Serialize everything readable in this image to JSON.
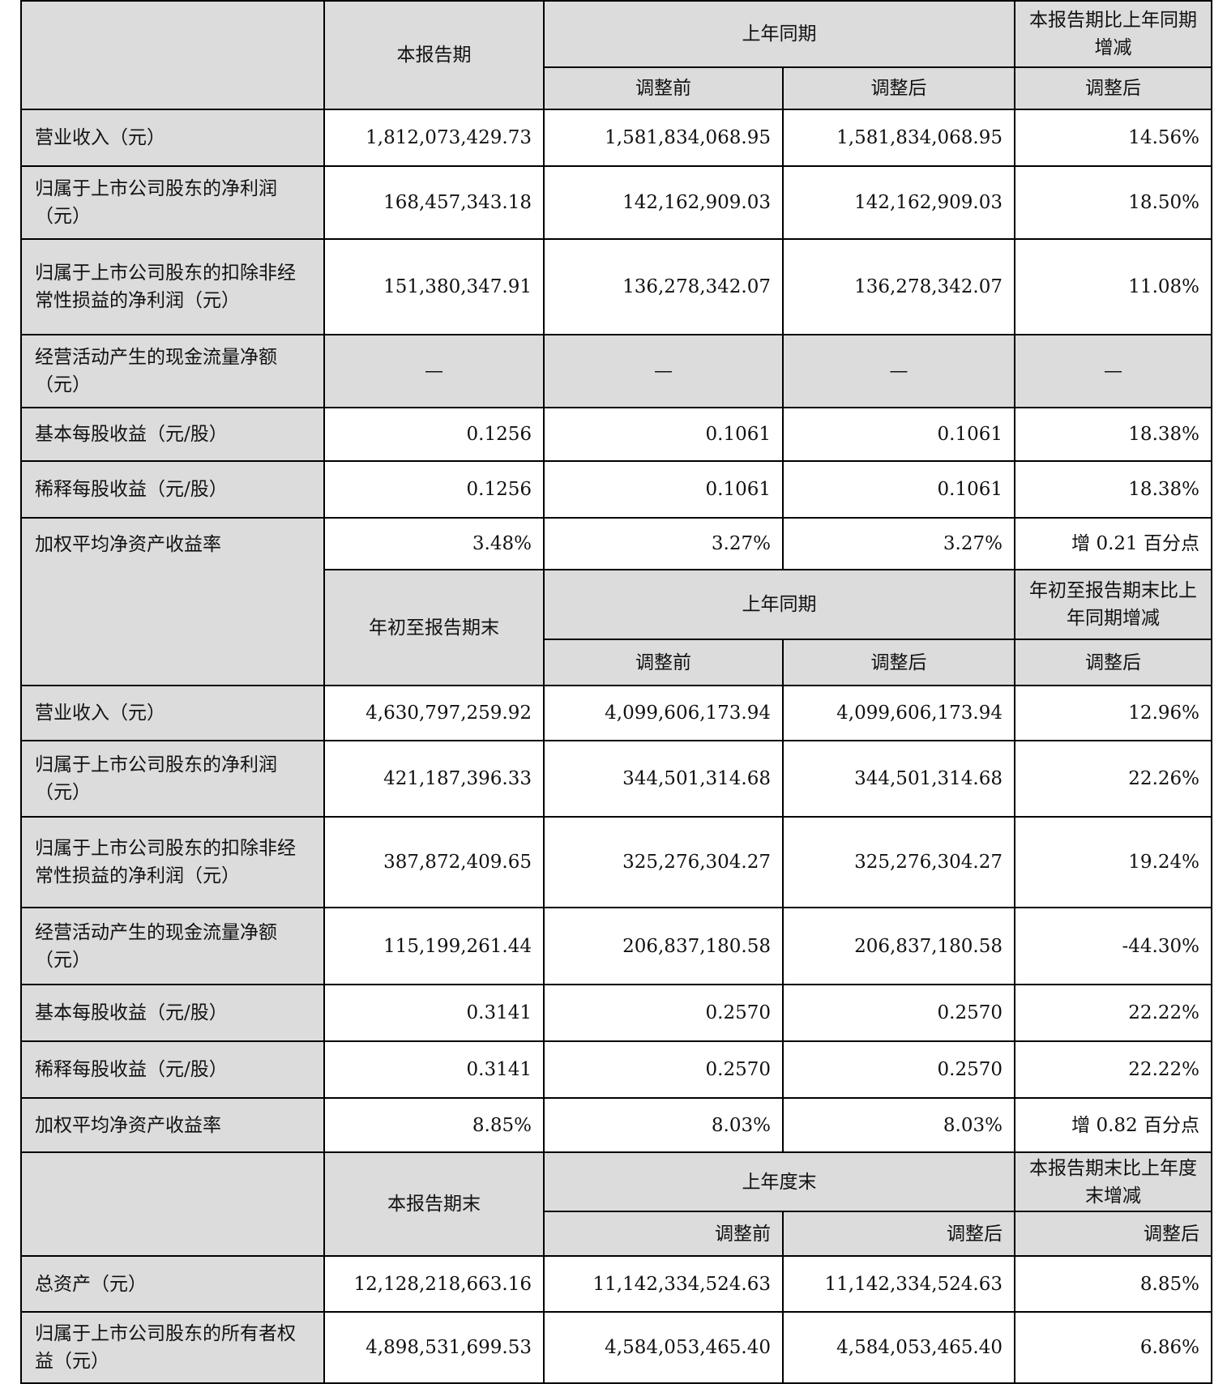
{
  "section1": {
    "header": {
      "current": "本报告期",
      "prior": "上年同期",
      "change": "本报告期比上年同期增减",
      "before": "调整前",
      "after": "调整后",
      "change_after": "调整后"
    },
    "rows": [
      {
        "label": "营业收入（元）",
        "current": "1,812,073,429.73",
        "before": "1,581,834,068.95",
        "after": "1,581,834,068.95",
        "change": "14.56%"
      },
      {
        "label": "归属于上市公司股东的净利润（元）",
        "current": "168,457,343.18",
        "before": "142,162,909.03",
        "after": "142,162,909.03",
        "change": "18.50%"
      },
      {
        "label": "归属于上市公司股东的扣除非经常性损益的净利润（元）",
        "current": "151,380,347.91",
        "before": "136,278,342.07",
        "after": "136,278,342.07",
        "change": "11.08%"
      },
      {
        "label": "经营活动产生的现金流量净额（元）",
        "current": "—",
        "before": "—",
        "after": "—",
        "change": "—"
      },
      {
        "label": "基本每股收益（元/股）",
        "current": "0.1256",
        "before": "0.1061",
        "after": "0.1061",
        "change": "18.38%"
      },
      {
        "label": "稀释每股收益（元/股）",
        "current": "0.1256",
        "before": "0.1061",
        "after": "0.1061",
        "change": "18.38%"
      },
      {
        "label": "加权平均净资产收益率",
        "current": "3.48%",
        "before": "3.27%",
        "after": "3.27%",
        "change": "增 0.21 百分点"
      }
    ]
  },
  "section2": {
    "header": {
      "current": "年初至报告期末",
      "prior": "上年同期",
      "change": "年初至报告期末比上年同期增减",
      "before": "调整前",
      "after": "调整后",
      "change_after": "调整后"
    },
    "rows": [
      {
        "label": "营业收入（元）",
        "current": "4,630,797,259.92",
        "before": "4,099,606,173.94",
        "after": "4,099,606,173.94",
        "change": "12.96%"
      },
      {
        "label": "归属于上市公司股东的净利润（元）",
        "current": "421,187,396.33",
        "before": "344,501,314.68",
        "after": "344,501,314.68",
        "change": "22.26%"
      },
      {
        "label": "归属于上市公司股东的扣除非经常性损益的净利润（元）",
        "current": "387,872,409.65",
        "before": "325,276,304.27",
        "after": "325,276,304.27",
        "change": "19.24%"
      },
      {
        "label": "经营活动产生的现金流量净额（元）",
        "current": "115,199,261.44",
        "before": "206,837,180.58",
        "after": "206,837,180.58",
        "change": "-44.30%"
      },
      {
        "label": "基本每股收益（元/股）",
        "current": "0.3141",
        "before": "0.2570",
        "after": "0.2570",
        "change": "22.22%"
      },
      {
        "label": "稀释每股收益（元/股）",
        "current": "0.3141",
        "before": "0.2570",
        "after": "0.2570",
        "change": "22.22%"
      },
      {
        "label": "加权平均净资产收益率",
        "current": "8.85%",
        "before": "8.03%",
        "after": "8.03%",
        "change": "增 0.82 百分点"
      }
    ]
  },
  "section3": {
    "header": {
      "current": "本报告期末",
      "prior": "上年度末",
      "change": "本报告期末比上年度末增减",
      "before": "调整前",
      "after": "调整后",
      "change_after": "调整后"
    },
    "rows": [
      {
        "label": "总资产（元）",
        "current": "12,128,218,663.16",
        "before": "11,142,334,524.63",
        "after": "11,142,334,524.63",
        "change": "8.85%"
      },
      {
        "label": "归属于上市公司股东的所有者权益（元）",
        "current": "4,898,531,699.53",
        "before": "4,584,053,465.40",
        "after": "4,584,053,465.40",
        "change": "6.86%"
      }
    ]
  }
}
